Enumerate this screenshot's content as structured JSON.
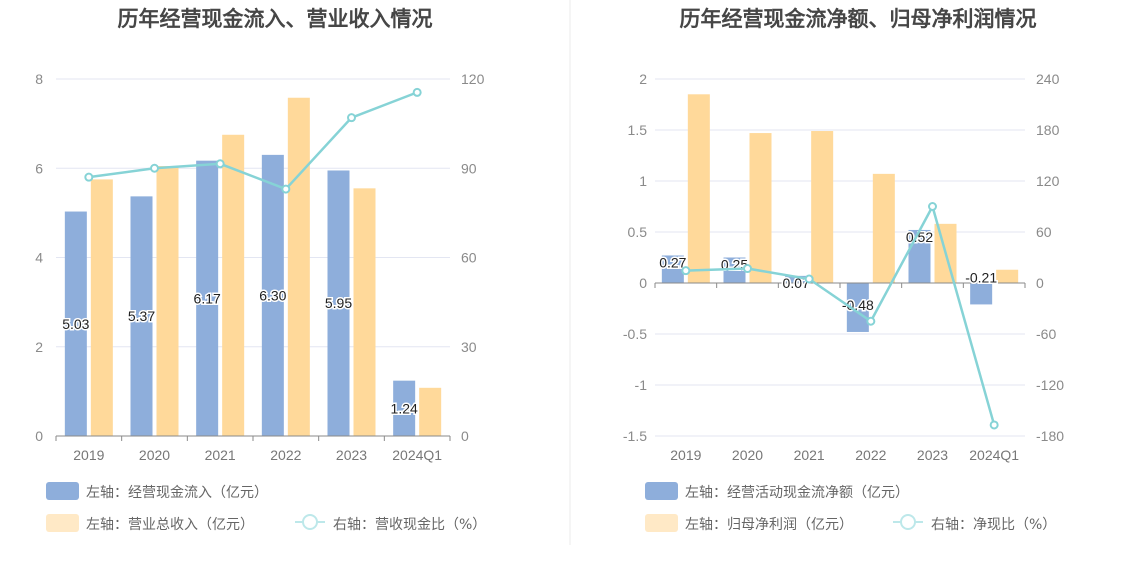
{
  "colors": {
    "bar_blue": "#8eaedb",
    "bar_orange": "#ffd99a",
    "line_teal": "#86d3d6",
    "grid": "#e3e6f2",
    "axis": "#8a8a8a"
  },
  "chart_data": [
    {
      "type": "bar",
      "title": "历年经营现金流入、营业收入情况",
      "categories": [
        "2019",
        "2020",
        "2021",
        "2022",
        "2023",
        "2024Q1"
      ],
      "y_left": {
        "ylim": [
          0,
          8
        ],
        "ticks": [
          "0",
          "2",
          "4",
          "6",
          "8"
        ],
        "tick_values": [
          0,
          2,
          4,
          6,
          8
        ]
      },
      "y_right": {
        "ylim": [
          0,
          120
        ],
        "ticks": [
          "0",
          "30",
          "60",
          "90",
          "120"
        ],
        "tick_values": [
          0,
          30,
          60,
          90,
          120
        ]
      },
      "series": [
        {
          "name": "左轴：经营现金流入（亿元）",
          "type": "bar",
          "axis": "left",
          "color": "#8eaedb",
          "values": [
            5.03,
            5.37,
            6.17,
            6.3,
            5.95,
            1.24
          ],
          "labels": [
            "5.03",
            "5.37",
            "6.17",
            "6.30",
            "5.95",
            "1.24"
          ]
        },
        {
          "name": "左轴：营业总收入（亿元）",
          "type": "bar",
          "axis": "left",
          "color": "#ffd99a",
          "values": [
            5.75,
            6.05,
            6.75,
            7.58,
            5.55,
            1.08
          ]
        },
        {
          "name": "右轴：营收现金比（%）",
          "type": "line",
          "axis": "right",
          "color": "#86d3d6",
          "values": [
            87,
            90,
            91.5,
            83,
            107,
            115.5
          ]
        }
      ],
      "legend": [
        "左轴：经营现金流入（亿元）",
        "左轴：营业总收入（亿元）",
        "右轴：营收现金比（%）"
      ]
    },
    {
      "type": "bar",
      "title": "历年经营现金流净额、归母净利润情况",
      "categories": [
        "2019",
        "2020",
        "2021",
        "2022",
        "2023",
        "2024Q1"
      ],
      "y_left": {
        "ylim": [
          -1.5,
          2
        ],
        "ticks": [
          "-1.5",
          "-1",
          "-0.5",
          "0",
          "0.5",
          "1",
          "1.5",
          "2"
        ],
        "tick_values": [
          -1.5,
          -1,
          -0.5,
          0,
          0.5,
          1,
          1.5,
          2
        ]
      },
      "y_right": {
        "ylim": [
          -180,
          240
        ],
        "ticks": [
          "-180",
          "-120",
          "-60",
          "0",
          "60",
          "120",
          "180",
          "240"
        ],
        "tick_values": [
          -180,
          -120,
          -60,
          0,
          60,
          120,
          180,
          240
        ]
      },
      "series": [
        {
          "name": "左轴：经营活动现金流净额（亿元）",
          "type": "bar",
          "axis": "left",
          "color": "#8eaedb",
          "values": [
            0.27,
            0.25,
            0.07,
            -0.48,
            0.52,
            -0.21
          ],
          "labels": [
            "0.27",
            "0.25",
            "0.07",
            "-0.48",
            "0.52",
            "-0.21"
          ]
        },
        {
          "name": "左轴：归母净利润（亿元）",
          "type": "bar",
          "axis": "left",
          "color": "#ffd99a",
          "values": [
            1.85,
            1.47,
            1.49,
            1.07,
            0.58,
            0.13
          ]
        },
        {
          "name": "右轴：净现比（%）",
          "type": "line",
          "axis": "right",
          "color": "#86d3d6",
          "values": [
            14.5,
            17,
            4.7,
            -45,
            90,
            -167
          ]
        }
      ],
      "legend": [
        "左轴：经营活动现金流净额（亿元）",
        "左轴：归母净利润（亿元）",
        "右轴：净现比（%）"
      ]
    }
  ]
}
